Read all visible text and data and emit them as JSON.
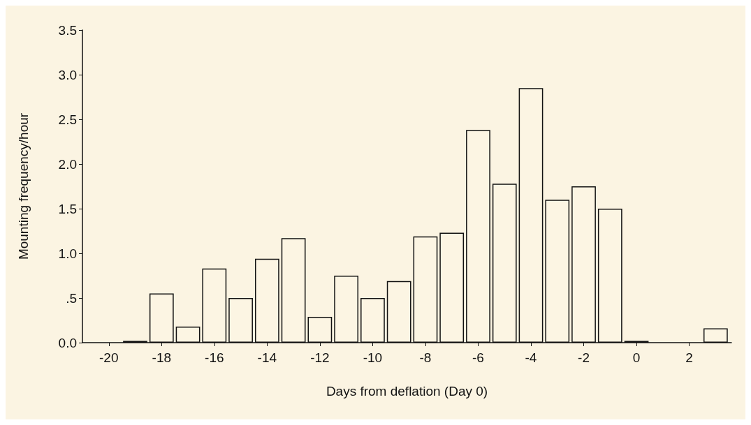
{
  "chart_data": {
    "type": "bar",
    "xlabel": "Days from deflation (Day 0)",
    "ylabel": "Mounting frequency/hour",
    "x": [
      -19,
      -18,
      -17,
      -16,
      -15,
      -14,
      -13,
      -12,
      -11,
      -10,
      -9,
      -8,
      -7,
      -6,
      -5,
      -4,
      -3,
      -2,
      -1,
      0,
      3
    ],
    "values": [
      0.02,
      0.55,
      0.18,
      0.83,
      0.5,
      0.94,
      1.17,
      0.29,
      0.75,
      0.5,
      0.69,
      1.19,
      1.23,
      2.38,
      1.78,
      2.85,
      1.6,
      1.75,
      1.5,
      0.02,
      0.16
    ],
    "color": "#fcf5e3",
    "xlim": [
      -21,
      3.6
    ],
    "xticks": [
      -20,
      -18,
      -16,
      -14,
      -12,
      -10,
      -8,
      -6,
      -4,
      -2,
      0,
      2
    ],
    "ylim": [
      0,
      3.5
    ],
    "yticks": [
      {
        "value": 0,
        "label": "0.0"
      },
      {
        "value": 0.5,
        "label": ".5"
      },
      {
        "value": 1,
        "label": "1.0"
      },
      {
        "value": 1.5,
        "label": "1.5"
      },
      {
        "value": 2,
        "label": "2.0"
      },
      {
        "value": 2.5,
        "label": "2.5"
      },
      {
        "value": 3,
        "label": "3.0"
      },
      {
        "value": 3.5,
        "label": "3.5"
      }
    ],
    "grid": false
  }
}
